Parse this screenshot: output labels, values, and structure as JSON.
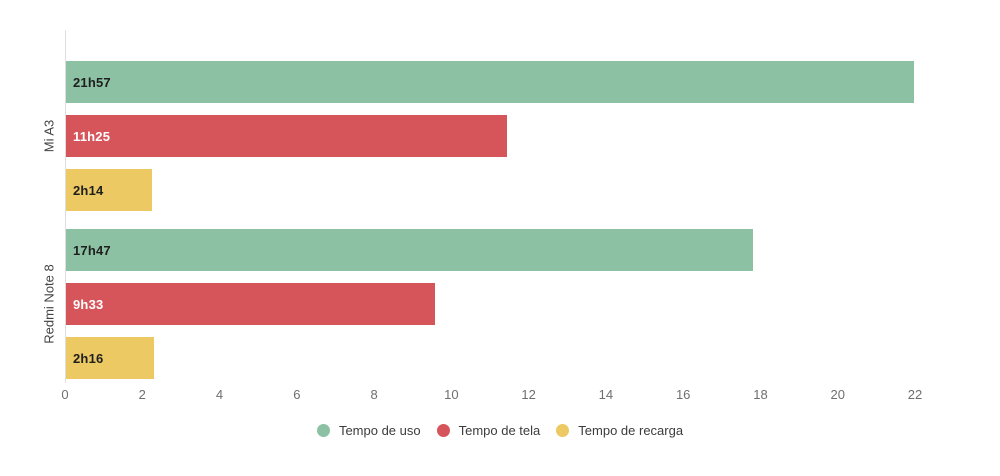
{
  "chart_data": {
    "type": "bar",
    "orientation": "horizontal",
    "title": "",
    "categories": [
      "Mi A3",
      "Redmi Note 8"
    ],
    "series": [
      {
        "name": "Tempo de uso",
        "color": "#8CC2A3",
        "label_text_color": "#1f1f1f",
        "data": [
          {
            "category": "Mi A3",
            "label": "21h57",
            "value": 21.95
          },
          {
            "category": "Redmi Note 8",
            "label": "17h47",
            "value": 17.78
          }
        ]
      },
      {
        "name": "Tempo de tela",
        "color": "#D6555B",
        "label_text_color": "#ffffff",
        "data": [
          {
            "category": "Mi A3",
            "label": "11h25",
            "value": 11.42
          },
          {
            "category": "Redmi Note 8",
            "label": "9h33",
            "value": 9.55
          }
        ]
      },
      {
        "name": "Tempo de recarga",
        "color": "#ECC962",
        "label_text_color": "#1f1f1f",
        "data": [
          {
            "category": "Mi A3",
            "label": "2h14",
            "value": 2.23
          },
          {
            "category": "Redmi Note 8",
            "label": "2h16",
            "value": 2.27
          }
        ]
      }
    ],
    "x_axis": {
      "min": 0,
      "max": 22,
      "tick_step": 2,
      "ticks": [
        0,
        2,
        4,
        6,
        8,
        10,
        12,
        14,
        16,
        18,
        20,
        22
      ]
    },
    "value_unit": "hours",
    "grid": false,
    "legend_position": "bottom",
    "axis_line_color": "#dedede",
    "tick_label_color": "#6f6f6f"
  }
}
